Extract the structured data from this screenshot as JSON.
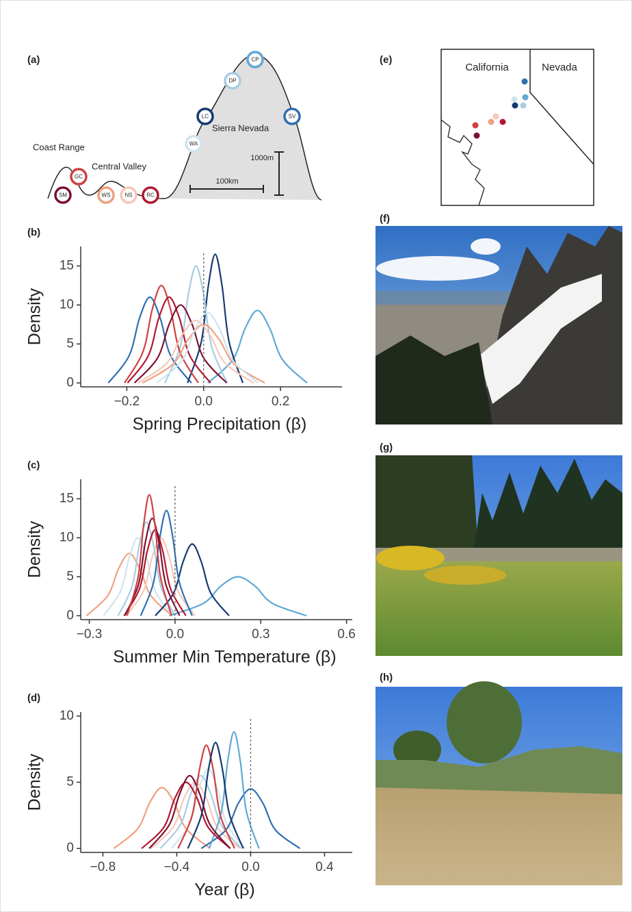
{
  "profile": {
    "panel_label": "(a)",
    "regions": [
      "Coast Range",
      "Central Valley",
      "Sierra Nevada"
    ],
    "sites": [
      {
        "label": "SM",
        "color": "#7b1030"
      },
      {
        "label": "GC",
        "color": "#d04040"
      },
      {
        "label": "WS",
        "color": "#f0a080"
      },
      {
        "label": "NS",
        "color": "#f5c8b8"
      },
      {
        "label": "RC",
        "color": "#b01830"
      },
      {
        "label": "WA",
        "color": "#d0e4f0"
      },
      {
        "label": "LC",
        "color": "#153a70"
      },
      {
        "label": "DP",
        "color": "#a8cce4"
      },
      {
        "label": "CP",
        "color": "#5fa8d3"
      },
      {
        "label": "SV",
        "color": "#2f6fb0"
      }
    ],
    "scale_height": "1000m",
    "scale_length": "100km"
  },
  "map": {
    "panel_label": "(e)",
    "states": [
      "California",
      "Nevada"
    ]
  },
  "photos": [
    {
      "panel_label": "(f)"
    },
    {
      "panel_label": "(g)"
    },
    {
      "panel_label": "(h)"
    }
  ],
  "chart_data": [
    {
      "type": "line",
      "panel_label": "(b)",
      "ylabel": "Density",
      "xlabel": "Spring Precipitation (β)",
      "xlim": [
        -0.32,
        0.36
      ],
      "xticks": [
        {
          "value": -0.2,
          "label": "−0.2"
        },
        {
          "value": 0,
          "label": "0.0"
        },
        0.2
      ],
      "ylim": [
        -0.5,
        17.5
      ],
      "yticks": [
        0,
        5,
        10,
        15
      ],
      "reference_line": 0,
      "series": [
        {
          "color": "#2f6fb0",
          "x": [
            -0.248,
            -0.194,
            -0.167,
            -0.14,
            -0.113,
            -0.086,
            -0.032
          ],
          "values": [
            0,
            3.5,
            8.3,
            11,
            8.3,
            3.5,
            0
          ]
        },
        {
          "color": "#5fa8d3",
          "x": [
            0.011,
            0.076,
            0.108,
            0.14,
            0.172,
            0.205,
            0.269
          ],
          "values": [
            0,
            3,
            7,
            9.3,
            7,
            3,
            0
          ]
        },
        {
          "color": "#153a70",
          "x": [
            -0.042,
            -0.006,
            0.012,
            0.03,
            0.048,
            0.066,
            0.102
          ],
          "values": [
            0,
            5.3,
            12.4,
            16.5,
            12.4,
            5.3,
            0
          ]
        },
        {
          "color": "#a8cce4",
          "x": [
            -0.101,
            -0.06,
            -0.04,
            -0.02,
            0,
            0.02,
            0.061
          ],
          "values": [
            0,
            4.8,
            11.3,
            15,
            11.3,
            4.8,
            0
          ]
        },
        {
          "color": "#d04040",
          "x": [
            -0.206,
            -0.158,
            -0.134,
            -0.11,
            -0.086,
            -0.062,
            -0.014
          ],
          "values": [
            0,
            4,
            9.4,
            12.5,
            9.4,
            4,
            0
          ]
        },
        {
          "color": "#b01830",
          "x": [
            -0.198,
            -0.144,
            -0.117,
            -0.09,
            -0.063,
            -0.036,
            0.018
          ],
          "values": [
            0,
            3.5,
            8.3,
            11,
            8.3,
            3.5,
            0
          ]
        },
        {
          "color": "#7b1030",
          "x": [
            -0.18,
            -0.12,
            -0.09,
            -0.06,
            -0.03,
            0,
            0.06
          ],
          "values": [
            0,
            3.2,
            7.5,
            10,
            7.5,
            3.2,
            0
          ]
        },
        {
          "color": "#f0a080",
          "x": [
            -0.159,
            -0.08,
            -0.04,
            0,
            0.04,
            0.08,
            0.159
          ],
          "values": [
            0,
            2.4,
            5.6,
            7.5,
            5.6,
            2.4,
            0
          ]
        },
        {
          "color": "#f5c8b8",
          "x": [
            -0.17,
            -0.095,
            -0.058,
            -0.02,
            0.018,
            0.055,
            0.13
          ],
          "values": [
            0,
            2.6,
            6,
            8,
            6,
            2.6,
            0
          ]
        },
        {
          "color": "#d0e4f0",
          "x": [
            -0.122,
            -0.056,
            -0.023,
            0.01,
            0.043,
            0.076,
            0.142
          ],
          "values": [
            0,
            2.9,
            6.8,
            9,
            6.8,
            2.9,
            0
          ]
        }
      ]
    },
    {
      "type": "line",
      "panel_label": "(c)",
      "ylabel": "Density",
      "xlabel": "Summer Min Temperature (β)",
      "xlim": [
        -0.33,
        0.62
      ],
      "xticks": [
        {
          "value": -0.3,
          "label": "−0.3"
        },
        {
          "value": 0,
          "label": "0.0"
        },
        0.3,
        0.6
      ],
      "ylim": [
        -0.5,
        17.5
      ],
      "yticks": [
        0,
        5,
        10,
        15
      ],
      "reference_line": 0,
      "series": [
        {
          "color": "#f0a080",
          "x": [
            -0.31,
            -0.235,
            -0.198,
            -0.16,
            -0.123,
            -0.085,
            -0.01
          ],
          "values": [
            0,
            2.6,
            6,
            8,
            6,
            2.6,
            0
          ]
        },
        {
          "color": "#d0e4f0",
          "x": [
            -0.25,
            -0.19,
            -0.16,
            -0.13,
            -0.1,
            -0.07,
            -0.01
          ],
          "values": [
            0,
            3.2,
            7.5,
            10,
            7.5,
            3.2,
            0
          ]
        },
        {
          "color": "#f5c8b8",
          "x": [
            -0.17,
            -0.11,
            -0.08,
            -0.05,
            -0.02,
            0.01,
            0.07
          ],
          "values": [
            0,
            3.2,
            7.5,
            10,
            7.5,
            3.2,
            0
          ]
        },
        {
          "color": "#a8cce4",
          "x": [
            -0.199,
            -0.15,
            -0.125,
            -0.1,
            -0.075,
            -0.05,
            -0.001
          ],
          "values": [
            0,
            3.8,
            9,
            12,
            9,
            3.8,
            0
          ]
        },
        {
          "color": "#5fa8d3",
          "x": [
            -0.02,
            0.1,
            0.16,
            0.22,
            0.28,
            0.34,
            0.46
          ],
          "values": [
            0,
            1.6,
            3.8,
            5,
            3.8,
            1.6,
            0
          ]
        },
        {
          "color": "#153a70",
          "x": [
            -0.069,
            -0.005,
            0.028,
            0.06,
            0.092,
            0.125,
            0.189
          ],
          "values": [
            0,
            2.9,
            6.9,
            9.2,
            6.9,
            2.9,
            0
          ]
        },
        {
          "color": "#2f6fb0",
          "x": [
            -0.12,
            -0.075,
            -0.053,
            -0.03,
            -0.008,
            0.015,
            0.06
          ],
          "values": [
            0,
            4.3,
            10.1,
            13.5,
            10.1,
            4.3,
            0
          ]
        },
        {
          "color": "#b01830",
          "x": [
            -0.178,
            -0.124,
            -0.097,
            -0.07,
            -0.043,
            -0.016,
            0.038
          ],
          "values": [
            0,
            3.5,
            8.3,
            11,
            8.3,
            3.5,
            0
          ]
        },
        {
          "color": "#7b1030",
          "x": [
            -0.176,
            -0.128,
            -0.104,
            -0.08,
            -0.056,
            -0.032,
            0.016
          ],
          "values": [
            0,
            4,
            9.4,
            12.5,
            9.4,
            4,
            0
          ]
        },
        {
          "color": "#d04040",
          "x": [
            -0.168,
            -0.129,
            -0.11,
            -0.09,
            -0.07,
            -0.051,
            -0.012
          ],
          "values": [
            0,
            5,
            11.6,
            15.5,
            11.6,
            5,
            0
          ]
        }
      ]
    },
    {
      "type": "line",
      "panel_label": "(d)",
      "ylabel": "Density",
      "xlabel": "Year (β)",
      "xlim": [
        -0.92,
        0.55
      ],
      "xticks": [
        {
          "value": -0.8,
          "label": "−0.8"
        },
        {
          "value": -0.4,
          "label": "−0.4"
        },
        {
          "value": 0,
          "label": "0.0"
        },
        0.4
      ],
      "ylim": [
        -0.3,
        10.3
      ],
      "yticks": [
        0,
        5,
        10
      ],
      "reference_line": 0,
      "series": [
        {
          "color": "#f0a080",
          "x": [
            -0.741,
            -0.611,
            -0.545,
            -0.48,
            -0.415,
            -0.35,
            -0.219
          ],
          "values": [
            0,
            1.5,
            3.5,
            4.6,
            3.5,
            1.5,
            0
          ]
        },
        {
          "color": "#f5c8b8",
          "x": [
            -0.54,
            -0.42,
            -0.36,
            -0.3,
            -0.24,
            -0.18,
            -0.06
          ],
          "values": [
            0,
            1.6,
            3.8,
            5,
            3.8,
            1.6,
            0
          ]
        },
        {
          "color": "#d0e4f0",
          "x": [
            -0.428,
            -0.329,
            -0.28,
            -0.23,
            -0.18,
            -0.131,
            -0.032
          ],
          "values": [
            0,
            1.9,
            4.5,
            6,
            4.5,
            1.9,
            0
          ]
        },
        {
          "color": "#a8cce4",
          "x": [
            -0.489,
            -0.38,
            -0.325,
            -0.27,
            -0.215,
            -0.16,
            -0.051
          ],
          "values": [
            0,
            1.8,
            4.1,
            5.5,
            4.1,
            1.8,
            0
          ]
        },
        {
          "color": "#2f6fb0",
          "x": [
            -0.267,
            -0.134,
            -0.067,
            0,
            0.067,
            0.134,
            0.267
          ],
          "values": [
            0,
            1.4,
            3.4,
            4.5,
            3.4,
            1.4,
            0
          ]
        },
        {
          "color": "#5fa8d3",
          "x": [
            -0.225,
            -0.158,
            -0.124,
            -0.09,
            -0.056,
            -0.023,
            0.045
          ],
          "values": [
            0,
            2.8,
            6.6,
            8.8,
            6.6,
            2.8,
            0
          ]
        },
        {
          "color": "#b01830",
          "x": [
            -0.59,
            -0.47,
            -0.41,
            -0.35,
            -0.29,
            -0.23,
            -0.11
          ],
          "values": [
            0,
            1.6,
            3.8,
            5,
            3.8,
            1.6,
            0
          ]
        },
        {
          "color": "#7b1030",
          "x": [
            -0.549,
            -0.44,
            -0.385,
            -0.33,
            -0.275,
            -0.22,
            -0.111
          ],
          "values": [
            0,
            1.8,
            4.1,
            5.5,
            4.1,
            1.8,
            0
          ]
        },
        {
          "color": "#d04040",
          "x": [
            -0.393,
            -0.317,
            -0.278,
            -0.24,
            -0.202,
            -0.164,
            -0.087
          ],
          "values": [
            0,
            2.5,
            5.9,
            7.8,
            5.9,
            2.5,
            0
          ]
        },
        {
          "color": "#153a70",
          "x": [
            -0.34,
            -0.265,
            -0.228,
            -0.19,
            -0.153,
            -0.115,
            -0.04
          ],
          "values": [
            0,
            2.6,
            6,
            8,
            6,
            2.6,
            0
          ]
        }
      ]
    }
  ]
}
